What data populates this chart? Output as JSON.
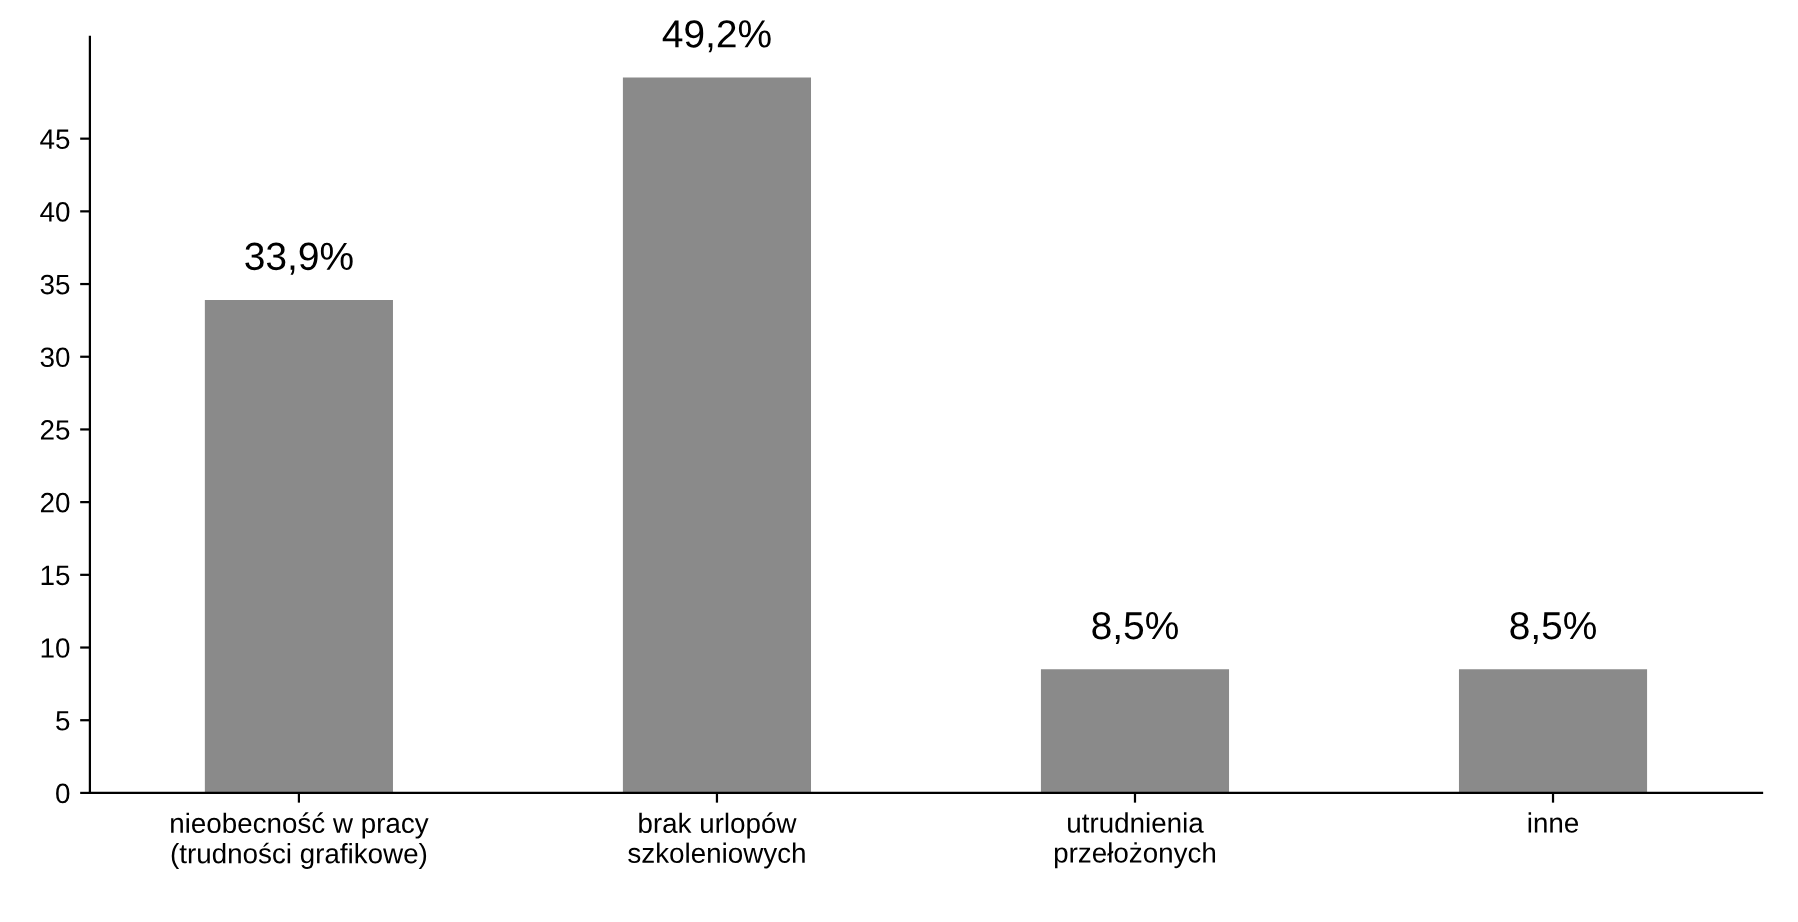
{
  "chart_data": {
    "type": "bar",
    "categories": [
      "nieobecność w pracy\n(trudności grafikowe)",
      "brak urlopów\nszkoleniowych",
      "utrudnienia\nprzełożonych",
      "inne"
    ],
    "values": [
      33.9,
      49.2,
      8.5,
      8.5
    ],
    "value_labels": [
      "33,9%",
      "49,2%",
      "8,5%",
      "8,5%"
    ],
    "color": "#8a8a8a",
    "ylim": [
      0,
      52
    ],
    "yticks": [
      0,
      5,
      10,
      15,
      20,
      25,
      30,
      35,
      40,
      45
    ],
    "grid": false
  }
}
